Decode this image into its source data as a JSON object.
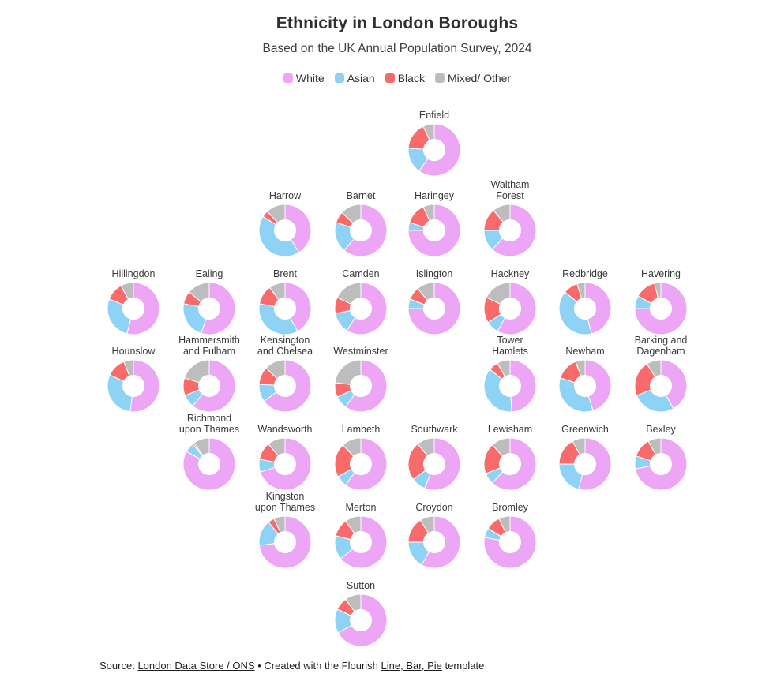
{
  "title": "Ethnicity in London Boroughs",
  "subtitle": "Based on the UK Annual Population Survey, 2024",
  "legend": {
    "items": [
      {
        "label": "White",
        "color": "#eda6f5"
      },
      {
        "label": "Asian",
        "color": "#8ed3f5"
      },
      {
        "label": "Black",
        "color": "#f96a6a"
      },
      {
        "label": "Mixed/ Other",
        "color": "#bdbdbd"
      }
    ]
  },
  "footer": {
    "source_prefix": "Source:",
    "source_link": "London Data Store / ONS",
    "bullet": "•",
    "created_prefix": "Created with the Flourish",
    "template_link": "Line, Bar, Pie",
    "created_suffix": "template"
  },
  "chart_data": {
    "type": "pie",
    "variant": "small-multiple donuts arranged to mirror London borough geography",
    "categories": [
      "White",
      "Asian",
      "Black",
      "Mixed/ Other"
    ],
    "colors": [
      "#eda6f5",
      "#8ed3f5",
      "#f96a6a",
      "#bdbdbd"
    ],
    "unit": "percent (estimated from donut arc angles)",
    "boroughs": [
      {
        "name": "Enfield",
        "label": "Enfield",
        "row": 1,
        "col": 5,
        "values": [
          60,
          16,
          17,
          7
        ]
      },
      {
        "name": "Harrow",
        "label": "Harrow",
        "row": 2,
        "col": 3,
        "values": [
          41,
          43,
          4,
          12
        ]
      },
      {
        "name": "Barnet",
        "label": "Barnet",
        "row": 2,
        "col": 4,
        "values": [
          61,
          19,
          7,
          13
        ]
      },
      {
        "name": "Haringey",
        "label": "Haringey",
        "row": 2,
        "col": 5,
        "values": [
          75,
          5,
          13,
          7
        ]
      },
      {
        "name": "Waltham Forest",
        "label": "Waltham\nForest",
        "row": 2,
        "col": 6,
        "values": [
          62,
          13,
          14,
          11
        ]
      },
      {
        "name": "Hillingdon",
        "label": "Hillingdon",
        "row": 3,
        "col": 1,
        "values": [
          54,
          27,
          11,
          8
        ]
      },
      {
        "name": "Ealing",
        "label": "Ealing",
        "row": 3,
        "col": 2,
        "values": [
          55,
          23,
          8,
          14
        ]
      },
      {
        "name": "Brent",
        "label": "Brent",
        "row": 3,
        "col": 3,
        "values": [
          42,
          36,
          12,
          10
        ]
      },
      {
        "name": "Camden",
        "label": "Camden",
        "row": 3,
        "col": 4,
        "values": [
          59,
          13,
          10,
          18
        ]
      },
      {
        "name": "Islington",
        "label": "Islington",
        "row": 3,
        "col": 5,
        "values": [
          75,
          6,
          8,
          11
        ]
      },
      {
        "name": "Hackney",
        "label": "Hackney",
        "row": 3,
        "col": 6,
        "values": [
          58,
          8,
          16,
          18
        ]
      },
      {
        "name": "Redbridge",
        "label": "Redbridge",
        "row": 3,
        "col": 7,
        "values": [
          46,
          40,
          9,
          5
        ]
      },
      {
        "name": "Havering",
        "label": "Havering",
        "row": 3,
        "col": 8,
        "values": [
          75,
          8,
          13,
          4
        ]
      },
      {
        "name": "Hounslow",
        "label": "Hounslow",
        "row": 4,
        "col": 1,
        "values": [
          52,
          30,
          12,
          6
        ]
      },
      {
        "name": "Hammersmith and Fulham",
        "label": "Hammersmith\nand Fulham",
        "row": 4,
        "col": 2,
        "values": [
          61,
          8,
          11,
          20
        ]
      },
      {
        "name": "Kensington and Chelsea",
        "label": "Kensington\nand Chelsea",
        "row": 4,
        "col": 3,
        "values": [
          65,
          11,
          11,
          13
        ]
      },
      {
        "name": "Westminster",
        "label": "Westminster",
        "row": 4,
        "col": 4,
        "values": [
          60,
          8,
          9,
          23
        ]
      },
      {
        "name": "Tower Hamlets",
        "label": "Tower\nHamlets",
        "row": 4,
        "col": 6,
        "values": [
          49,
          37,
          6,
          8
        ]
      },
      {
        "name": "Newham",
        "label": "Newham",
        "row": 4,
        "col": 7,
        "values": [
          45,
          35,
          14,
          6
        ]
      },
      {
        "name": "Barking and Dagenham",
        "label": "Barking and\nDagenham",
        "row": 4,
        "col": 8,
        "values": [
          42,
          27,
          22,
          9
        ]
      },
      {
        "name": "Richmond upon Thames",
        "label": "Richmond\nupon Thames",
        "row": 5,
        "col": 2,
        "values": [
          83,
          6,
          1,
          10
        ]
      },
      {
        "name": "Wandsworth",
        "label": "Wandsworth",
        "row": 5,
        "col": 3,
        "values": [
          70,
          8,
          11,
          11
        ]
      },
      {
        "name": "Lambeth",
        "label": "Lambeth",
        "row": 5,
        "col": 4,
        "values": [
          60,
          7,
          21,
          12
        ]
      },
      {
        "name": "Southwark",
        "label": "Southwark",
        "row": 5,
        "col": 5,
        "values": [
          56,
          9,
          24,
          11
        ]
      },
      {
        "name": "Lewisham",
        "label": "Lewisham",
        "row": 5,
        "col": 6,
        "values": [
          62,
          7,
          19,
          12
        ]
      },
      {
        "name": "Greenwich",
        "label": "Greenwich",
        "row": 5,
        "col": 7,
        "values": [
          54,
          21,
          17,
          8
        ]
      },
      {
        "name": "Bexley",
        "label": "Bexley",
        "row": 5,
        "col": 8,
        "values": [
          72,
          8,
          12,
          8
        ]
      },
      {
        "name": "Kingston upon Thames",
        "label": "Kingston\nupon Thames",
        "row": 6,
        "col": 3,
        "values": [
          73,
          16,
          4,
          7
        ]
      },
      {
        "name": "Merton",
        "label": "Merton",
        "row": 6,
        "col": 4,
        "values": [
          64,
          15,
          11,
          10
        ]
      },
      {
        "name": "Croydon",
        "label": "Croydon",
        "row": 6,
        "col": 5,
        "values": [
          58,
          17,
          16,
          9
        ]
      },
      {
        "name": "Bromley",
        "label": "Bromley",
        "row": 6,
        "col": 6,
        "values": [
          78,
          6,
          9,
          7
        ]
      },
      {
        "name": "Sutton",
        "label": "Sutton",
        "row": 7,
        "col": 4,
        "values": [
          67,
          15,
          8,
          10
        ]
      }
    ]
  }
}
